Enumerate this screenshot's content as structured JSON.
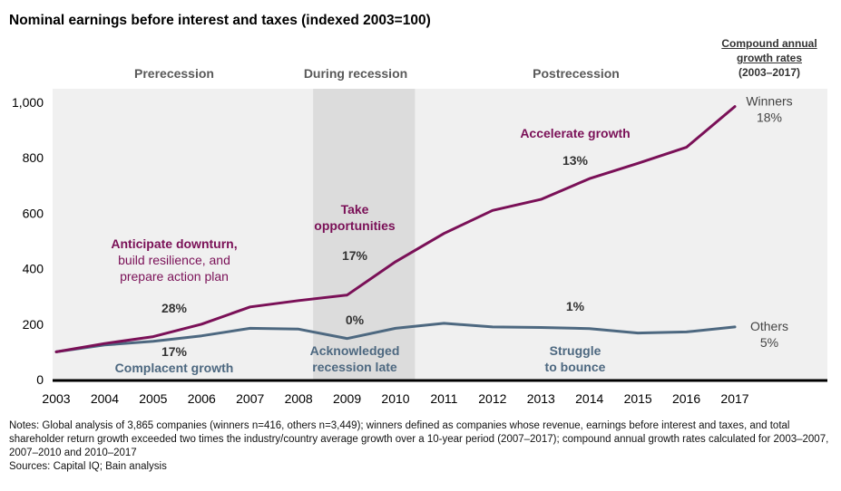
{
  "title": "Nominal earnings before interest and taxes (indexed 2003=100)",
  "cagr_header": {
    "line1": "Compound annual",
    "line2": "growth rates",
    "line3": "(2003–2017)"
  },
  "phases": [
    "Prerecession",
    "During recession",
    "Postrecession"
  ],
  "colors": {
    "winners": "#7a1057",
    "others": "#4d6880",
    "bg_light": "#f0f0f0",
    "bg_recession": "#dcdcdc"
  },
  "chart_data": {
    "type": "line",
    "x": [
      2003,
      2004,
      2005,
      2006,
      2007,
      2008,
      2009,
      2010,
      2011,
      2012,
      2013,
      2014,
      2015,
      2016,
      2017
    ],
    "series": [
      {
        "name": "Winners",
        "cagr": "18%",
        "values": [
          100,
          130,
          155,
          200,
          262,
          285,
          305,
          425,
          527,
          610,
          650,
          725,
          780,
          838,
          985
        ]
      },
      {
        "name": "Others",
        "cagr": "5%",
        "values": [
          100,
          125,
          138,
          158,
          185,
          182,
          148,
          185,
          203,
          190,
          188,
          184,
          168,
          172,
          190
        ]
      }
    ],
    "ylim": [
      0,
      1000
    ],
    "yticks": [
      "0",
      "200",
      "400",
      "600",
      "800",
      "1,000"
    ],
    "ytick_values": [
      0,
      200,
      400,
      600,
      800,
      1000
    ],
    "xticks": [
      "2003",
      "2004",
      "2005",
      "2006",
      "2007",
      "2008",
      "2009",
      "2010",
      "2011",
      "2012",
      "2013",
      "2014",
      "2015",
      "2016",
      "2017"
    ],
    "recession_span": [
      2008,
      2010.4
    ],
    "annotations": {
      "winners": [
        {
          "lines": [
            "Anticipate downturn,"
          ],
          "bold": true
        },
        {
          "lines": [
            "build resilience, and",
            "prepare action plan"
          ],
          "bold": false
        },
        {
          "pct": "28%"
        },
        {
          "lines": [
            "Take",
            "opportunities"
          ],
          "bold": true
        },
        {
          "pct": "17%"
        },
        {
          "lines": [
            "Accelerate growth"
          ],
          "bold": true
        },
        {
          "pct": "13%"
        }
      ],
      "others": [
        {
          "pct": "17%"
        },
        {
          "lines": [
            "Complacent growth"
          ]
        },
        {
          "pct": "0%"
        },
        {
          "lines": [
            "Acknowledged",
            "recession late"
          ]
        },
        {
          "pct": "1%"
        },
        {
          "lines": [
            "Struggle",
            "to bounce"
          ]
        }
      ]
    }
  },
  "notes": {
    "text": "Notes: Global analysis of 3,865 companies (winners n=416, others n=3,449); winners defined as companies whose revenue, earnings before interest and taxes, and total shareholder return growth exceeded two times the industry/country average growth over a 10-year period (2007–2017); compound annual growth rates calculated for 2003–2007, 2007–2010 and 2010–2017",
    "sources": "Sources: Capital IQ; Bain analysis"
  }
}
